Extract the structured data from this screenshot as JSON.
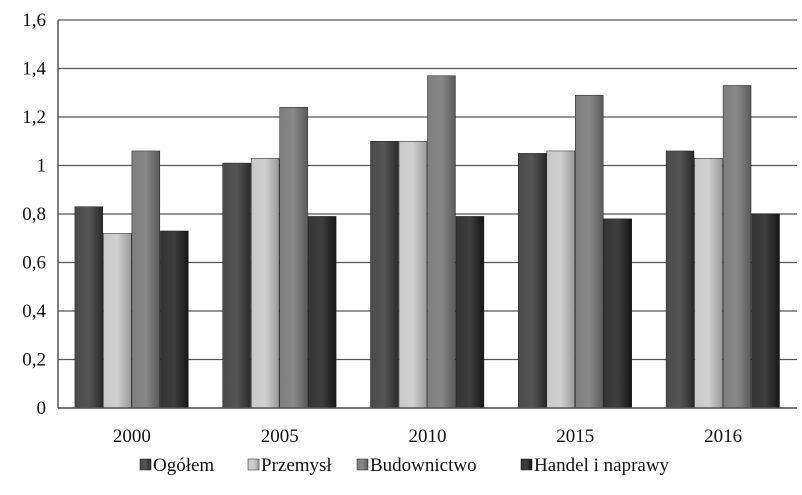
{
  "chart_data": {
    "type": "bar",
    "title": "",
    "xlabel": "",
    "ylabel": "",
    "categories": [
      "2000",
      "2005",
      "2010",
      "2015",
      "2016"
    ],
    "series": [
      {
        "name": "Ogółem",
        "values": [
          0.83,
          1.01,
          1.1,
          1.05,
          1.06
        ],
        "color": "#3a3a3a"
      },
      {
        "name": "Przemysł",
        "values": [
          0.72,
          1.03,
          1.1,
          1.06,
          1.03
        ],
        "color": "#b4b4b4"
      },
      {
        "name": "Budownictwo",
        "values": [
          1.06,
          1.24,
          1.37,
          1.29,
          1.33
        ],
        "color": "#6e6e6e"
      },
      {
        "name": "Handel i naprawy",
        "values": [
          0.73,
          0.79,
          0.79,
          0.78,
          0.8
        ],
        "color": "#252525"
      }
    ],
    "ylim": [
      0,
      1.6
    ],
    "yticks": [
      "0",
      "0,2",
      "0,4",
      "0,6",
      "0,8",
      "1",
      "1,2",
      "1,4",
      "1,6"
    ],
    "grid": true,
    "legend_position": "bottom"
  }
}
